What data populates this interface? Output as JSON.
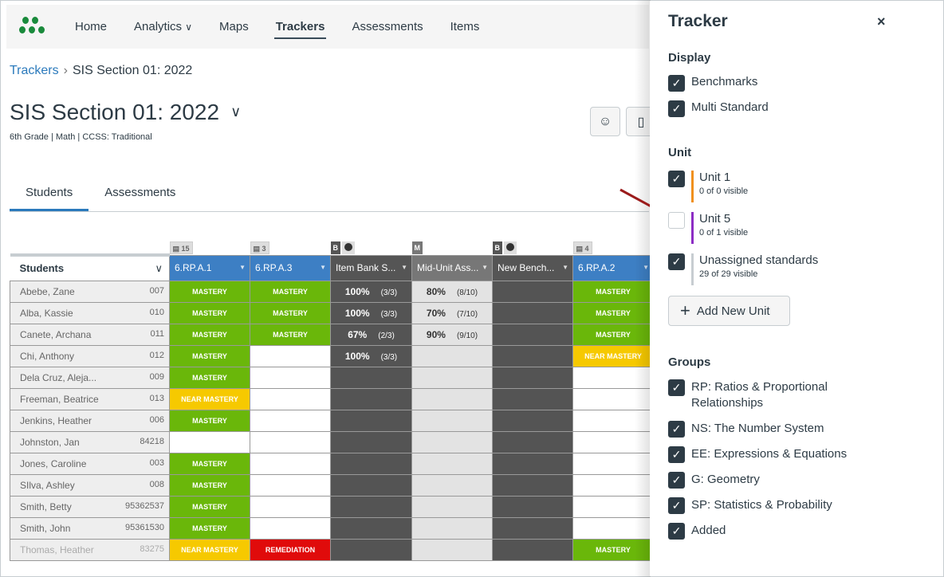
{
  "nav": {
    "items": [
      "Home",
      "Analytics",
      "Maps",
      "Trackers",
      "Assessments",
      "Items"
    ],
    "active": "Trackers"
  },
  "breadcrumb": {
    "root": "Trackers",
    "current": "SIS Section 01: 2022"
  },
  "page": {
    "title": "SIS Section 01: 2022",
    "subtitle": "6th Grade | Math | CCSS: Traditional"
  },
  "tabs": [
    "Students",
    "Assessments"
  ],
  "table": {
    "students_header": "Students",
    "columns": [
      {
        "label": "6.RP.A.1",
        "badge": "15",
        "type": "std"
      },
      {
        "label": "6.RP.A.3",
        "badge": "3",
        "type": "std"
      },
      {
        "label": "Item Bank S...",
        "badge": "B",
        "type": "ib"
      },
      {
        "label": "Mid-Unit Ass...",
        "badge": "M",
        "type": "mu"
      },
      {
        "label": "New Bench...",
        "badge": "B",
        "type": "ib"
      },
      {
        "label": "6.RP.A.2",
        "badge": "4",
        "type": "std"
      }
    ],
    "rows": [
      {
        "name": "Abebe, Zane",
        "id": "007",
        "cells": [
          "MASTERY",
          "MASTERY",
          {
            "pct": "100%",
            "frac": "(3/3)"
          },
          {
            "pct": "80%",
            "frac": "(8/10)"
          },
          "",
          "MASTERY"
        ]
      },
      {
        "name": "Alba, Kassie",
        "id": "010",
        "cells": [
          "MASTERY",
          "MASTERY",
          {
            "pct": "100%",
            "frac": "(3/3)"
          },
          {
            "pct": "70%",
            "frac": "(7/10)"
          },
          "",
          "MASTERY"
        ]
      },
      {
        "name": "Canete, Archana",
        "id": "011",
        "cells": [
          "MASTERY",
          "MASTERY",
          {
            "pct": "67%",
            "frac": "(2/3)"
          },
          {
            "pct": "90%",
            "frac": "(9/10)"
          },
          "",
          "MASTERY"
        ]
      },
      {
        "name": "Chi, Anthony",
        "id": "012",
        "cells": [
          "MASTERY",
          "",
          {
            "pct": "100%",
            "frac": "(3/3)"
          },
          "",
          "",
          "NEAR MASTERY"
        ]
      },
      {
        "name": "Dela Cruz, Aleja...",
        "id": "009",
        "cells": [
          "MASTERY",
          "",
          "",
          "",
          "",
          ""
        ]
      },
      {
        "name": "Freeman, Beatrice",
        "id": "013",
        "cells": [
          "NEAR MASTERY",
          "",
          "",
          "",
          "",
          ""
        ]
      },
      {
        "name": "Jenkins, Heather",
        "id": "006",
        "cells": [
          "MASTERY",
          "",
          "",
          "",
          "",
          ""
        ]
      },
      {
        "name": "Johnston, Jan",
        "id": "84218",
        "cells": [
          "",
          "",
          "",
          "",
          "",
          ""
        ]
      },
      {
        "name": "Jones, Caroline",
        "id": "003",
        "cells": [
          "MASTERY",
          "",
          "",
          "",
          "",
          ""
        ]
      },
      {
        "name": "SIlva, Ashley",
        "id": "008",
        "cells": [
          "MASTERY",
          "",
          "",
          "",
          "",
          ""
        ]
      },
      {
        "name": "Smith, Betty",
        "id": "95362537",
        "cells": [
          "MASTERY",
          "",
          "",
          "",
          "",
          ""
        ]
      },
      {
        "name": "Smith, John",
        "id": "95361530",
        "cells": [
          "MASTERY",
          "",
          "",
          "",
          "",
          ""
        ]
      },
      {
        "name": "Thomas, Heather",
        "id": "83275",
        "dim": true,
        "cells": [
          "NEAR MASTERY",
          "REMEDIATION",
          "",
          "",
          "",
          "MASTERY"
        ]
      }
    ]
  },
  "panel": {
    "title": "Tracker",
    "close": "×",
    "display_title": "Display",
    "display": [
      {
        "label": "Benchmarks",
        "checked": true
      },
      {
        "label": "Multi Standard",
        "checked": true
      }
    ],
    "unit_title": "Unit",
    "units": [
      {
        "label": "Unit 1",
        "visible": "0 of 0 visible",
        "checked": true,
        "color": "#f0901e"
      },
      {
        "label": "Unit 5",
        "visible": "0 of 1 visible",
        "checked": false,
        "color": "#8c2dc4"
      },
      {
        "label": "Unassigned standards",
        "visible": "29 of 29 visible",
        "checked": true,
        "color": "#c7cdd1"
      }
    ],
    "add_unit": "Add New Unit",
    "groups_title": "Groups",
    "groups": [
      {
        "label": "RP: Ratios & Proportional Relationships",
        "checked": true
      },
      {
        "label": "NS: The Number System",
        "checked": true
      },
      {
        "label": "EE: Expressions & Equations",
        "checked": true
      },
      {
        "label": "G: Geometry",
        "checked": true
      },
      {
        "label": "SP: Statistics & Probability",
        "checked": true
      },
      {
        "label": "Added",
        "checked": true
      }
    ]
  }
}
